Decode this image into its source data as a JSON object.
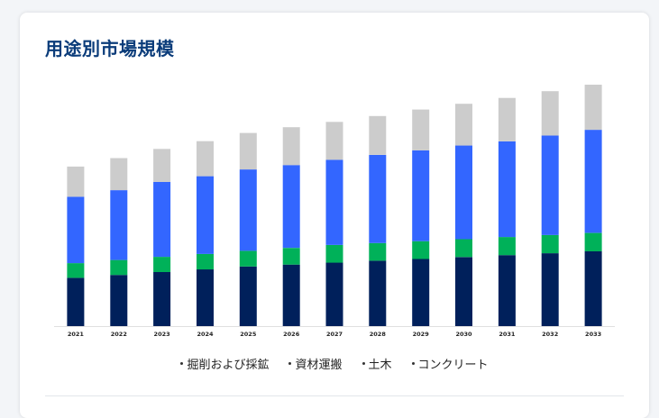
{
  "page": {
    "title": "用途別市場規模"
  },
  "colors": {
    "series_0": "#00205b",
    "series_1": "#00b159",
    "series_2": "#3366ff",
    "series_3": "#cccccc",
    "baseline": "#e0e0e0"
  },
  "chart_data": {
    "type": "bar",
    "stacked": true,
    "title": "",
    "xlabel": "",
    "ylabel": "",
    "ylim": [
      0,
      100
    ],
    "grid": false,
    "legend_position": "bottom",
    "categories": [
      "2021",
      "2022",
      "2023",
      "2024",
      "2025",
      "2026",
      "2027",
      "2028",
      "2029",
      "2030",
      "2031",
      "2032",
      "2033"
    ],
    "series": [
      {
        "name": "掘削および採鉱",
        "values": [
          20.0,
          21.2,
          22.4,
          23.5,
          24.7,
          25.5,
          26.3,
          27.1,
          27.8,
          28.6,
          29.4,
          30.2,
          31.0
        ]
      },
      {
        "name": "資材運搬",
        "values": [
          6.1,
          6.2,
          6.3,
          6.4,
          6.5,
          6.9,
          7.3,
          7.3,
          7.4,
          7.4,
          7.5,
          7.5,
          7.6
        ]
      },
      {
        "name": "土木",
        "values": [
          27.5,
          28.9,
          31.0,
          32.2,
          33.7,
          34.3,
          35.3,
          36.5,
          37.6,
          38.8,
          39.6,
          41.2,
          42.7
        ]
      },
      {
        "name": "コンクリート",
        "values": [
          12.5,
          13.3,
          13.7,
          14.5,
          15.1,
          15.7,
          15.7,
          16.1,
          16.9,
          17.3,
          18.0,
          18.4,
          18.7
        ]
      }
    ]
  }
}
